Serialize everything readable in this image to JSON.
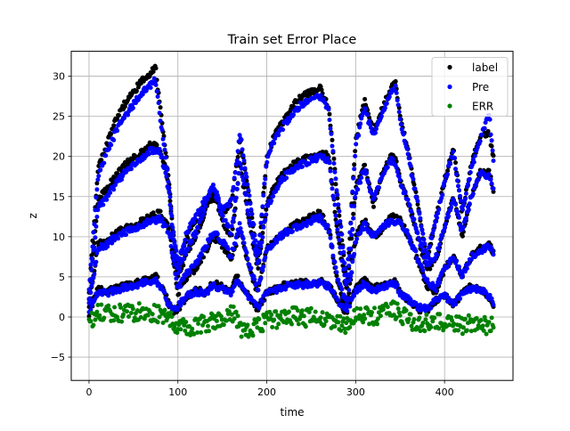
{
  "colors": {
    "label": "#000000",
    "pre": "#0000ff",
    "err": "#008000",
    "grid": "#b0b0b0",
    "axes": "#000000"
  },
  "chart_data": {
    "type": "scatter",
    "title": "Train set Error Place",
    "xlabel": "time",
    "ylabel": "z",
    "xlim": [
      -20,
      477
    ],
    "ylim": [
      -7.9,
      33.1
    ],
    "xticks": [
      0,
      100,
      200,
      300,
      400
    ],
    "yticks": [
      -5,
      0,
      5,
      10,
      15,
      20,
      25,
      30
    ],
    "grid": true,
    "legend": "top-right",
    "n_points": 460,
    "series": [
      {
        "name": "label",
        "color_key": "label",
        "tracks": [
          {
            "x": [
              0,
              10,
              20,
              30,
              40,
              50,
              60,
              70,
              75,
              80,
              85,
              90,
              95,
              100,
              110,
              120,
              130,
              140,
              150,
              160,
              165,
              170,
              180,
              190,
              200,
              210,
              220,
              230,
              240,
              250,
              260,
              270,
              280,
              290,
              300,
              310,
              320,
              330,
              340,
              345,
              350,
              360,
              370,
              380,
              390,
              400,
              410,
              420,
              430,
              440,
              450,
              455
            ],
            "y": [
              0.5,
              3.5,
              3.2,
              3.5,
              4.0,
              4.2,
              4.6,
              4.9,
              5.0,
              4.2,
              3.0,
              1.5,
              0.8,
              1.0,
              2.5,
              3.5,
              3.0,
              4.2,
              3.8,
              3.2,
              5.3,
              4.2,
              2.5,
              1.0,
              3.0,
              3.5,
              4.0,
              4.3,
              4.2,
              4.3,
              4.4,
              4.0,
              2.0,
              0.5,
              3.5,
              4.5,
              3.5,
              4.0,
              4.3,
              4.3,
              3.0,
              2.0,
              1.0,
              0.8,
              2.0,
              2.8,
              1.5,
              3.0,
              3.8,
              3.5,
              2.5,
              1.5
            ]
          },
          {
            "x": [
              0,
              10,
              20,
              30,
              40,
              50,
              60,
              70,
              80,
              90,
              100,
              110,
              120,
              130,
              140,
              150,
              160,
              170,
              180,
              190,
              200,
              210,
              220,
              230,
              240,
              250,
              260,
              270,
              280,
              290,
              300,
              310,
              320,
              330,
              340,
              350,
              360,
              370,
              380,
              390,
              400,
              410,
              420,
              430,
              440,
              450,
              455
            ],
            "y": [
              1.0,
              9.0,
              9.5,
              10.5,
              11.0,
              11.3,
              12.0,
              12.5,
              13.0,
              11.0,
              3.0,
              5.0,
              6.0,
              8.0,
              10.0,
              9.0,
              7.0,
              11.0,
              6.0,
              3.0,
              8.5,
              9.5,
              10.5,
              11.5,
              12.0,
              12.5,
              13.0,
              11.0,
              4.0,
              1.0,
              10.0,
              12.0,
              10.0,
              11.0,
              12.5,
              12.0,
              10.0,
              7.0,
              4.0,
              3.0,
              6.0,
              7.5,
              5.0,
              7.5,
              8.5,
              9.0,
              8.0
            ]
          },
          {
            "x": [
              0,
              10,
              20,
              30,
              40,
              50,
              60,
              70,
              80,
              85,
              90,
              95,
              100,
              110,
              120,
              130,
              135,
              140,
              150,
              160,
              165,
              170,
              180,
              190,
              200,
              210,
              220,
              230,
              240,
              250,
              260,
              270,
              280,
              290,
              300,
              310,
              320,
              330,
              340,
              345,
              350,
              360,
              370,
              380,
              390,
              400,
              410,
              420,
              430,
              440,
              450,
              455
            ],
            "y": [
              2.0,
              14.5,
              16.0,
              17.5,
              19.0,
              19.8,
              20.5,
              21.5,
              21.0,
              19.0,
              16.0,
              9.0,
              5.0,
              8.0,
              10.0,
              13.0,
              15.0,
              16.0,
              12.0,
              10.0,
              14.0,
              19.0,
              12.0,
              6.0,
              14.0,
              16.5,
              18.0,
              19.0,
              19.5,
              20.0,
              20.5,
              20.0,
              10.0,
              3.0,
              16.0,
              19.0,
              14.0,
              18.0,
              20.0,
              19.5,
              17.0,
              14.0,
              10.0,
              6.0,
              7.0,
              11.0,
              15.0,
              10.0,
              15.0,
              18.0,
              18.0,
              16.0
            ]
          },
          {
            "x": [
              0,
              10,
              20,
              30,
              40,
              50,
              60,
              70,
              75,
              80,
              85,
              90,
              95,
              100,
              110,
              120,
              130,
              140,
              150,
              160,
              165,
              170,
              180,
              190,
              200,
              210,
              220,
              230,
              240,
              250,
              260,
              270,
              280,
              290,
              300,
              310,
              320,
              330,
              340,
              345,
              350,
              360,
              370,
              380,
              390,
              400,
              410,
              420,
              430,
              440,
              450,
              455
            ],
            "y": [
              3.0,
              18.5,
              21.5,
              24.5,
              26.5,
              28.0,
              29.5,
              30.5,
              31.0,
              26.0,
              22.0,
              17.0,
              10.0,
              6.0,
              10.0,
              12.0,
              14.0,
              15.0,
              13.0,
              14.0,
              18.0,
              22.0,
              15.0,
              7.0,
              20.0,
              23.0,
              24.5,
              26.5,
              27.5,
              28.0,
              28.5,
              26.0,
              14.0,
              4.0,
              22.0,
              27.0,
              23.0,
              26.0,
              28.5,
              29.0,
              25.0,
              20.0,
              14.0,
              7.0,
              12.0,
              17.0,
              21.0,
              13.0,
              19.0,
              22.5,
              23.0,
              20.0
            ]
          }
        ]
      },
      {
        "name": "Pre",
        "color_key": "pre",
        "tracks": [
          {
            "x": [
              0,
              10,
              20,
              30,
              40,
              50,
              60,
              70,
              75,
              80,
              85,
              90,
              95,
              100,
              110,
              120,
              130,
              140,
              150,
              160,
              165,
              170,
              180,
              190,
              200,
              210,
              220,
              230,
              240,
              250,
              260,
              270,
              280,
              290,
              300,
              310,
              320,
              330,
              340,
              345,
              350,
              360,
              370,
              380,
              390,
              400,
              410,
              420,
              430,
              440,
              450,
              455
            ],
            "y": [
              0.8,
              3.2,
              3.0,
              3.3,
              3.7,
              3.9,
              4.2,
              4.4,
              4.5,
              3.8,
              2.8,
              1.5,
              1.0,
              1.3,
              2.6,
              3.2,
              2.9,
              3.9,
              3.5,
              3.0,
              4.6,
              3.9,
              2.4,
              1.2,
              2.9,
              3.3,
              3.8,
              4.0,
              4.0,
              4.1,
              4.2,
              3.8,
              2.0,
              0.8,
              3.3,
              4.2,
              3.3,
              3.8,
              4.1,
              4.1,
              3.0,
              2.1,
              1.2,
              1.0,
              2.0,
              2.7,
              1.6,
              2.8,
              3.6,
              3.4,
              2.5,
              1.8
            ]
          },
          {
            "x": [
              0,
              10,
              20,
              30,
              40,
              50,
              60,
              70,
              80,
              90,
              100,
              110,
              120,
              130,
              140,
              150,
              160,
              170,
              180,
              190,
              200,
              210,
              220,
              230,
              240,
              250,
              260,
              270,
              280,
              290,
              300,
              310,
              320,
              330,
              340,
              350,
              360,
              370,
              380,
              390,
              400,
              410,
              420,
              430,
              440,
              450,
              455
            ],
            "y": [
              1.5,
              8.5,
              9.0,
              10.0,
              10.5,
              11.0,
              11.5,
              12.0,
              12.2,
              10.5,
              3.5,
              5.5,
              6.5,
              8.5,
              10.5,
              9.5,
              7.5,
              11.5,
              6.5,
              3.5,
              8.5,
              9.5,
              10.5,
              11.0,
              11.5,
              12.0,
              12.3,
              10.8,
              4.5,
              1.5,
              9.5,
              11.5,
              10.2,
              11.0,
              12.0,
              11.8,
              10.0,
              7.2,
              4.5,
              3.5,
              6.0,
              7.3,
              5.2,
              7.4,
              8.3,
              8.8,
              7.8
            ]
          },
          {
            "x": [
              0,
              10,
              20,
              30,
              40,
              50,
              60,
              70,
              80,
              85,
              90,
              95,
              100,
              110,
              120,
              130,
              135,
              140,
              150,
              160,
              165,
              170,
              180,
              190,
              200,
              210,
              220,
              230,
              240,
              250,
              260,
              270,
              280,
              290,
              300,
              310,
              320,
              330,
              340,
              345,
              350,
              360,
              370,
              380,
              390,
              400,
              410,
              420,
              430,
              440,
              450,
              455
            ],
            "y": [
              2.5,
              13.5,
              15.0,
              16.5,
              18.0,
              19.0,
              19.8,
              20.8,
              20.5,
              18.5,
              15.5,
              9.5,
              5.5,
              8.5,
              10.5,
              13.5,
              15.5,
              16.3,
              12.5,
              10.5,
              14.5,
              19.3,
              12.5,
              6.5,
              13.5,
              16.0,
              17.5,
              18.5,
              19.0,
              19.5,
              20.0,
              19.5,
              10.5,
              3.5,
              15.5,
              18.5,
              14.5,
              17.5,
              19.5,
              19.0,
              16.8,
              14.0,
              10.3,
              6.5,
              7.5,
              11.2,
              14.8,
              10.5,
              15.0,
              17.8,
              17.7,
              15.8
            ]
          },
          {
            "x": [
              0,
              10,
              20,
              30,
              40,
              50,
              60,
              70,
              75,
              80,
              85,
              90,
              95,
              100,
              110,
              120,
              130,
              140,
              150,
              160,
              165,
              170,
              180,
              190,
              200,
              210,
              220,
              230,
              240,
              250,
              260,
              270,
              280,
              290,
              300,
              310,
              320,
              330,
              340,
              345,
              350,
              360,
              370,
              380,
              390,
              400,
              410,
              420,
              430,
              440,
              450,
              455
            ],
            "y": [
              3.5,
              17.5,
              20.5,
              23.0,
              25.0,
              26.5,
              28.0,
              29.0,
              29.5,
              25.0,
              21.0,
              16.5,
              10.5,
              6.5,
              10.5,
              12.5,
              14.5,
              16.2,
              13.5,
              14.5,
              18.5,
              23.0,
              15.5,
              7.5,
              19.5,
              22.5,
              24.0,
              25.5,
              26.5,
              27.0,
              27.5,
              25.5,
              14.5,
              4.5,
              21.5,
              26.0,
              22.5,
              25.5,
              28.0,
              28.5,
              24.5,
              19.5,
              14.0,
              7.5,
              12.0,
              16.8,
              20.5,
              13.0,
              18.5,
              22.0,
              25.5,
              19.5
            ]
          }
        ]
      },
      {
        "name": "ERR",
        "color_key": "err",
        "tracks": [
          {
            "x": [
              0,
              10,
              20,
              30,
              40,
              50,
              60,
              70,
              80,
              90,
              100,
              110,
              120,
              130,
              140,
              150,
              160,
              165,
              170,
              180,
              190,
              200,
              210,
              220,
              230,
              240,
              250,
              260,
              270,
              280,
              290,
              300,
              310,
              320,
              330,
              340,
              350,
              360,
              370,
              380,
              390,
              400,
              410,
              420,
              430,
              440,
              450,
              455
            ],
            "y": [
              -0.5,
              0.5,
              0.8,
              0.3,
              0.6,
              0.4,
              0.8,
              0.5,
              0.2,
              -0.3,
              -1.0,
              -1.5,
              -1.2,
              -0.8,
              -0.5,
              -0.2,
              0.5,
              0.0,
              -1.5,
              -1.5,
              -1.2,
              -0.5,
              -0.3,
              0.0,
              0.2,
              -0.2,
              0.0,
              0.2,
              -0.5,
              -0.8,
              -1.0,
              0.5,
              0.2,
              0.0,
              0.5,
              1.0,
              0.5,
              -0.5,
              -1.0,
              -0.8,
              -0.5,
              -0.8,
              -1.0,
              -1.0,
              -0.8,
              -1.2,
              -1.0,
              -0.8
            ]
          }
        ]
      }
    ]
  }
}
